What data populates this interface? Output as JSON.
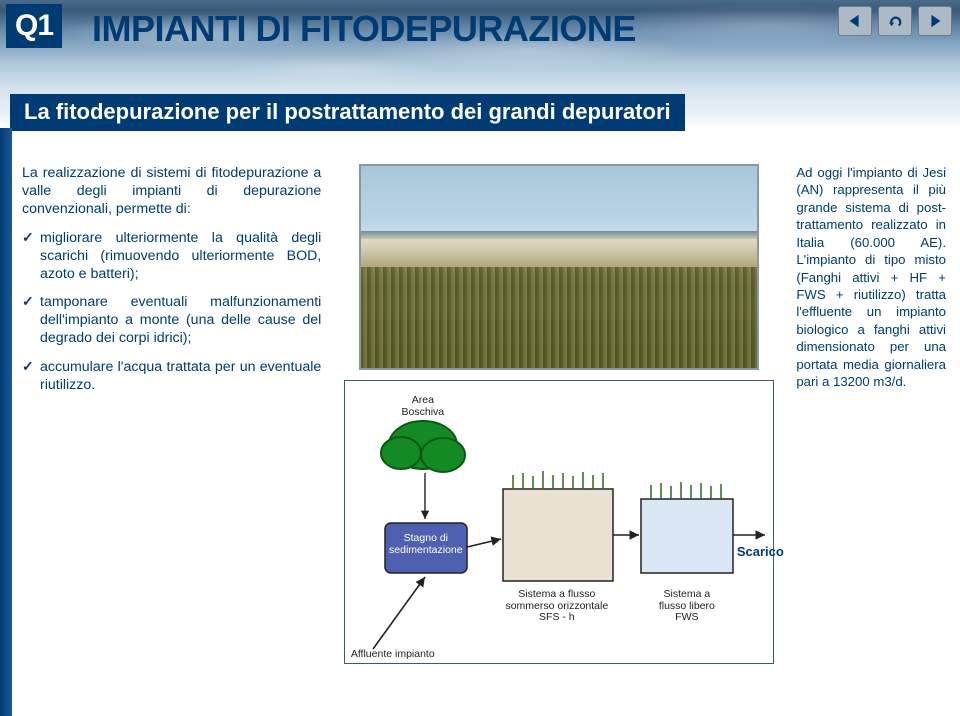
{
  "badge": "Q1",
  "title": "IMPIANTI DI FITODEPURAZIONE",
  "subtitle": "La fitodepurazione per il postrattamento dei grandi depuratori",
  "nav": {
    "prev": "prev-icon",
    "back": "return-icon",
    "next": "next-icon"
  },
  "left": {
    "intro": "La realizzazione di sistemi di fitodepurazione a valle degli impianti di depurazione convenzionali, permette di:",
    "bullets": [
      "migliorare ulteriormente la qualità degli scarichi (rimuovendo ulteriormente BOD, azoto e batteri);",
      "tamponare eventuali malfunzionamenti dell'impianto a monte (una delle cause del degrado dei corpi idrici);",
      "accumulare l'acqua trattata per un eventuale riutilizzo."
    ]
  },
  "diagram": {
    "area_boschiva": "Area\nBoschiva",
    "stagno": "Stagno di\nsedimentazione",
    "sfs": "Sistema a flusso\nsommerso orizzontale\nSFS - h",
    "fws": "Sistema a\nflusso libero\nFWS",
    "affluente": "Affluente impianto",
    "scarico": "Scarico",
    "colors": {
      "tree": "#138a23",
      "pond": "#5060b0",
      "sfs_fill": "#e9e2d2",
      "fws_fill": "#d9e8f4",
      "border": "#222"
    }
  },
  "right": "Ad oggi l'impianto di Jesi (AN) rappresenta il più grande sistema di post-trattamento realizzato in Italia (60.000 AE). L'impianto di tipo misto (Fanghi attivi + HF + FWS + riutilizzo) tratta l'effluente un impianto biologico a fanghi attivi dimensionato per una portata media giornaliera pari a 13200 m3/d.",
  "colors": {
    "brand": "#003b73"
  }
}
